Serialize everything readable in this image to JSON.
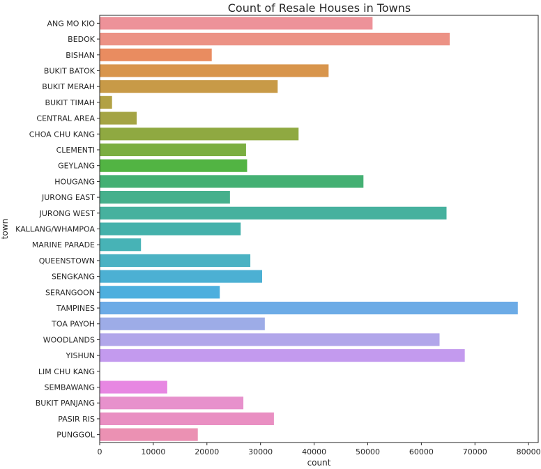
{
  "chart_data": {
    "type": "bar",
    "orientation": "horizontal",
    "title": "Count of Resale Houses in Towns",
    "xlabel": "count",
    "ylabel": "town",
    "xlim": [
      0,
      81800
    ],
    "xticks": [
      0,
      10000,
      20000,
      30000,
      40000,
      50000,
      60000,
      70000,
      80000
    ],
    "xtick_labels": [
      "0",
      "10000",
      "20000",
      "30000",
      "40000",
      "50000",
      "60000",
      "70000",
      "80000"
    ],
    "grid": false,
    "legend": "none",
    "categories": [
      "ANG MO KIO",
      "BEDOK",
      "BISHAN",
      "BUKIT BATOK",
      "BUKIT MERAH",
      "BUKIT TIMAH",
      "CENTRAL AREA",
      "CHOA CHU KANG",
      "CLEMENTI",
      "GEYLANG",
      "HOUGANG",
      "JURONG EAST",
      "JURONG WEST",
      "KALLANG/WHAMPOA",
      "MARINE PARADE",
      "QUEENSTOWN",
      "SENGKANG",
      "SERANGOON",
      "TAMPINES",
      "TOA PAYOH",
      "WOODLANDS",
      "YISHUN",
      "LIM CHU KANG",
      "SEMBAWANG",
      "BUKIT PANJANG",
      "PASIR RIS",
      "PUNGGOL"
    ],
    "values": [
      50900,
      65300,
      20900,
      42700,
      33200,
      2300,
      6900,
      37100,
      27300,
      27500,
      49200,
      24300,
      64700,
      26300,
      7700,
      28100,
      30300,
      22400,
      78000,
      30800,
      63400,
      68100,
      60,
      12600,
      26800,
      32500,
      18300
    ],
    "colors": [
      "#ED9299",
      "#EC9285",
      "#E98C60",
      "#D8954C",
      "#C89A47",
      "#B2A144",
      "#A4A444",
      "#8FA941",
      "#7BAE41",
      "#52B443",
      "#44B073",
      "#46B08C",
      "#46B19E",
      "#44B1AB",
      "#47B3B6",
      "#4BB2C3",
      "#4CB0D3",
      "#4DAFDE",
      "#6CABE6",
      "#9DACE7",
      "#B1A6EA",
      "#C39AEE",
      "#D99BEB",
      "#E787E2",
      "#E791CC",
      "#E98FC2",
      "#EB91B3"
    ]
  }
}
